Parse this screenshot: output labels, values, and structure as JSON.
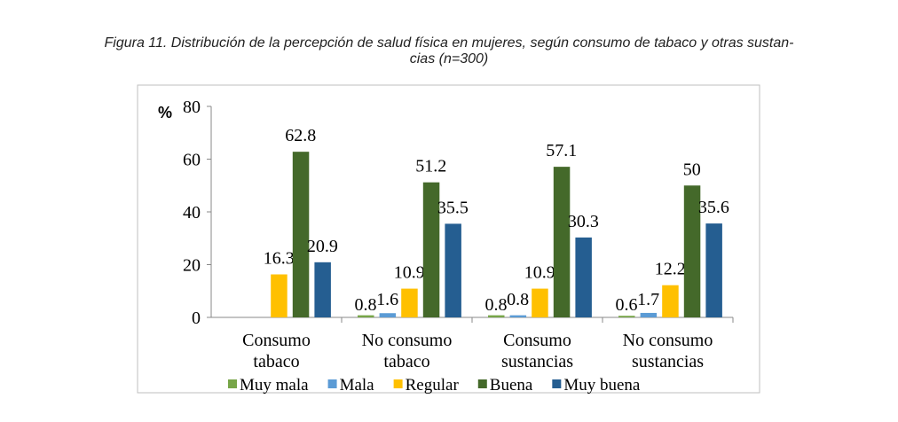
{
  "chart_data": {
    "type": "bar",
    "title": "Figura 11. Distribución de la percepción de salud física en mujeres, según consumo de tabaco y otras sustan-cias (n=300)",
    "title_lines": [
      "Figura 11. Distribución de la percepción de salud física en mujeres, según consumo de tabaco y otras sustan-",
      "cias (n=300)"
    ],
    "ylabel": "%",
    "ylim": [
      0,
      80
    ],
    "yticks": [
      0,
      20,
      40,
      60,
      80
    ],
    "grid": false,
    "legend": "bottom",
    "categories": [
      [
        "Consumo",
        "tabaco"
      ],
      [
        "No consumo",
        "tabaco"
      ],
      [
        "Consumo",
        "sustancias"
      ],
      [
        "No consumo",
        "sustancias"
      ]
    ],
    "series": [
      {
        "name": "Muy mala",
        "color": "#77a548",
        "values": [
          null,
          0.8,
          0.8,
          0.6
        ]
      },
      {
        "name": "Mala",
        "color": "#5b9bd5",
        "values": [
          null,
          1.6,
          0.8,
          1.7
        ]
      },
      {
        "name": "Regular",
        "color": "#ffc000",
        "values": [
          16.3,
          10.9,
          10.9,
          12.2
        ]
      },
      {
        "name": "Buena",
        "color": "#44692a",
        "values": [
          62.8,
          51.2,
          57.1,
          50
        ]
      },
      {
        "name": "Muy buena",
        "color": "#255e91",
        "values": [
          20.9,
          35.5,
          30.3,
          35.6
        ]
      }
    ]
  }
}
